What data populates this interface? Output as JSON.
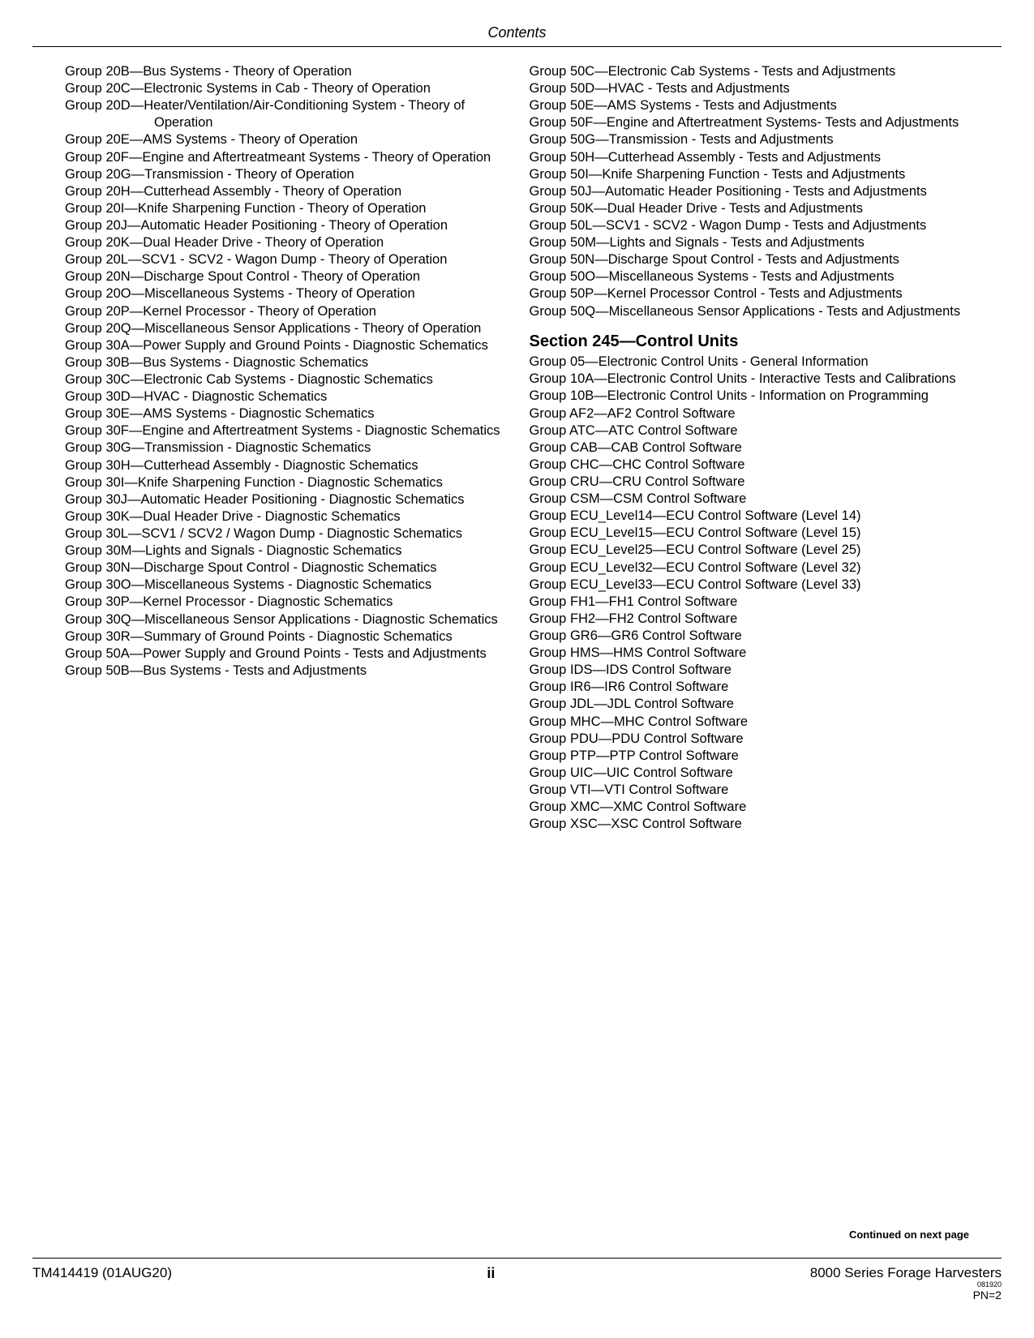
{
  "header": {
    "title": "Contents"
  },
  "leftColumn": [
    {
      "code": "Group 20B",
      "text": "Bus Systems - Theory of Operation"
    },
    {
      "code": "Group 20C",
      "text": "Electronic Systems in Cab - Theory of Operation"
    },
    {
      "code": "Group 20D",
      "text": "Heater/Ventilation/Air-Conditioning System - Theory of Operation"
    },
    {
      "code": "Group 20E",
      "text": "AMS Systems - Theory of Operation"
    },
    {
      "code": "Group 20F",
      "text": "Engine and Aftertreatmeant Systems - Theory of Operation"
    },
    {
      "code": "Group 20G",
      "text": "Transmission - Theory of Operation"
    },
    {
      "code": "Group 20H",
      "text": "Cutterhead Assembly - Theory of Operation"
    },
    {
      "code": "Group 20I",
      "text": "Knife Sharpening Function - Theory of Operation"
    },
    {
      "code": "Group 20J",
      "text": "Automatic Header Positioning - Theory of Operation"
    },
    {
      "code": "Group 20K",
      "text": "Dual Header Drive - Theory of Operation"
    },
    {
      "code": "Group 20L",
      "text": "SCV1 - SCV2 - Wagon Dump - Theory of Operation"
    },
    {
      "code": "Group 20N",
      "text": "Discharge Spout Control - Theory of Operation"
    },
    {
      "code": "Group 20O",
      "text": "Miscellaneous Systems - Theory of Operation"
    },
    {
      "code": "Group 20P",
      "text": "Kernel Processor - Theory of Operation"
    },
    {
      "code": "Group 20Q",
      "text": "Miscellaneous Sensor Applications - Theory of Operation"
    },
    {
      "code": "Group 30A",
      "text": "Power Supply and Ground Points - Diagnostic Schematics"
    },
    {
      "code": "Group 30B",
      "text": "Bus Systems - Diagnostic Schematics"
    },
    {
      "code": "Group 30C",
      "text": "Electronic Cab Systems - Diagnostic Schematics"
    },
    {
      "code": "Group 30D",
      "text": "HVAC - Diagnostic Schematics"
    },
    {
      "code": "Group 30E",
      "text": "AMS Systems - Diagnostic Schematics"
    },
    {
      "code": "Group 30F",
      "text": "Engine and Aftertreatment Systems - Diagnostic Schematics"
    },
    {
      "code": "Group 30G",
      "text": "Transmission - Diagnostic Schematics"
    },
    {
      "code": "Group 30H",
      "text": "Cutterhead Assembly - Diagnostic Schematics"
    },
    {
      "code": "Group 30I",
      "text": "Knife Sharpening Function - Diagnostic Schematics"
    },
    {
      "code": "Group 30J",
      "text": "Automatic Header Positioning - Diagnostic Schematics"
    },
    {
      "code": "Group 30K",
      "text": "Dual Header Drive - Diagnostic Schematics"
    },
    {
      "code": "Group 30L",
      "text": "SCV1 / SCV2 / Wagon Dump - Diagnostic Schematics"
    },
    {
      "code": "Group 30M",
      "text": "Lights and Signals - Diagnostic Schematics"
    },
    {
      "code": "Group 30N",
      "text": "Discharge Spout Control - Diagnostic Schematics"
    },
    {
      "code": "Group 30O",
      "text": "Miscellaneous Systems - Diagnostic Schematics"
    },
    {
      "code": "Group 30P",
      "text": "Kernel Processor - Diagnostic Schematics"
    },
    {
      "code": "Group 30Q",
      "text": "Miscellaneous Sensor Applications - Diagnostic Schematics"
    },
    {
      "code": "Group 30R",
      "text": "Summary of Ground Points - Diagnostic Schematics"
    },
    {
      "code": "Group 50A",
      "text": "Power Supply and Ground Points - Tests and Adjustments"
    },
    {
      "code": "Group 50B",
      "text": "Bus Systems - Tests and Adjustments"
    }
  ],
  "rightColumnTop": [
    {
      "code": "Group 50C",
      "text": "Electronic Cab Systems - Tests and Adjustments"
    },
    {
      "code": "Group 50D",
      "text": "HVAC - Tests and Adjustments"
    },
    {
      "code": "Group 50E",
      "text": "AMS Systems - Tests and Adjustments"
    },
    {
      "code": "Group 50F",
      "text": "Engine and Aftertreatment Systems- Tests and Adjustments"
    },
    {
      "code": "Group 50G",
      "text": "Transmission - Tests and Adjustments"
    },
    {
      "code": "Group 50H",
      "text": "Cutterhead Assembly - Tests and Adjustments"
    },
    {
      "code": "Group 50I",
      "text": "Knife Sharpening Function - Tests and Adjustments"
    },
    {
      "code": "Group 50J",
      "text": "Automatic Header Positioning - Tests and Adjustments"
    },
    {
      "code": "Group 50K",
      "text": "Dual Header Drive - Tests and Adjustments"
    },
    {
      "code": "Group 50L",
      "text": "SCV1 - SCV2 - Wagon Dump - Tests and Adjustments"
    },
    {
      "code": "Group 50M",
      "text": "Lights and Signals - Tests and Adjustments"
    },
    {
      "code": "Group 50N",
      "text": "Discharge Spout Control - Tests and Adjustments"
    },
    {
      "code": "Group 50O",
      "text": "Miscellaneous Systems - Tests and Adjustments"
    },
    {
      "code": "Group 50P",
      "text": "Kernel Processor Control - Tests and Adjustments"
    },
    {
      "code": "Group 50Q",
      "text": "Miscellaneous Sensor Applications - Tests and Adjustments"
    }
  ],
  "section245": {
    "heading": "Section 245—Control Units",
    "items": [
      {
        "code": "Group 05",
        "text": "Electronic Control Units - General Information"
      },
      {
        "code": "Group 10A",
        "text": "Electronic Control Units - Interactive Tests and Calibrations"
      },
      {
        "code": "Group 10B",
        "text": "Electronic Control Units - Information on Programming"
      },
      {
        "code": "Group AF2",
        "text": "AF2 Control Software"
      },
      {
        "code": "Group ATC",
        "text": "ATC Control Software"
      },
      {
        "code": "Group CAB",
        "text": "CAB Control Software"
      },
      {
        "code": "Group CHC",
        "text": "CHC Control Software"
      },
      {
        "code": "Group CRU",
        "text": "CRU Control Software"
      },
      {
        "code": "Group CSM",
        "text": "CSM Control Software"
      },
      {
        "code": "Group ECU_Level14",
        "text": "ECU Control Software (Level 14)"
      },
      {
        "code": "Group ECU_Level15",
        "text": "ECU Control Software (Level 15)"
      },
      {
        "code": "Group ECU_Level25",
        "text": "ECU Control Software (Level 25)"
      },
      {
        "code": "Group ECU_Level32",
        "text": "ECU Control Software (Level 32)"
      },
      {
        "code": "Group ECU_Level33",
        "text": "ECU Control Software (Level 33)"
      },
      {
        "code": "Group FH1",
        "text": "FH1 Control Software"
      },
      {
        "code": "Group FH2",
        "text": "FH2 Control Software"
      },
      {
        "code": "Group GR6",
        "text": "GR6 Control Software"
      },
      {
        "code": "Group HMS",
        "text": "HMS Control Software"
      },
      {
        "code": "Group IDS",
        "text": "IDS Control Software"
      },
      {
        "code": "Group IR6",
        "text": "IR6 Control Software"
      },
      {
        "code": "Group JDL",
        "text": "JDL Control Software"
      },
      {
        "code": "Group MHC",
        "text": "MHC Control Software"
      },
      {
        "code": "Group PDU",
        "text": "PDU Control Software"
      },
      {
        "code": "Group PTP",
        "text": "PTP Control Software"
      },
      {
        "code": "Group UIC",
        "text": "UIC Control Software"
      },
      {
        "code": "Group VTI",
        "text": "VTI Control Software"
      },
      {
        "code": "Group XMC",
        "text": "XMC Control Software"
      },
      {
        "code": "Group XSC",
        "text": "XSC Control Software"
      }
    ]
  },
  "continued": "Continued on next page",
  "footer": {
    "left": "TM414419 (01AUG20)",
    "center": "ii",
    "right": "8000 Series Forage Harvesters",
    "tiny": "081920",
    "pn": "PN=2"
  }
}
